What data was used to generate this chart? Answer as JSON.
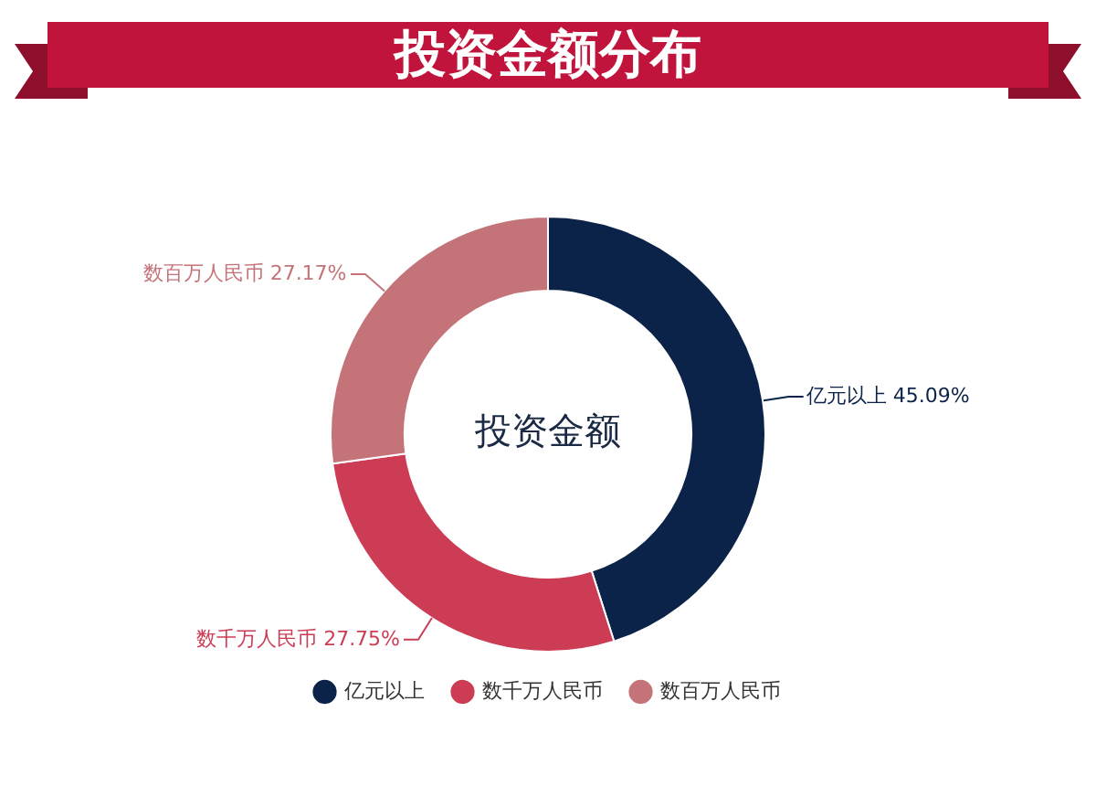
{
  "chart_data": {
    "type": "donut",
    "title": "投资金额分布",
    "categories": [
      "亿元以上",
      "数千万人民币",
      "数百万人民币"
    ],
    "values": [
      45.09,
      27.75,
      27.17
    ],
    "value_labels": [
      "45.09%",
      "27.75%",
      "27.17%"
    ],
    "colors": [
      "#0c2349",
      "#cc3d55",
      "#c47479"
    ],
    "annotations": [
      "投资金额"
    ],
    "legend": "bottom"
  }
}
